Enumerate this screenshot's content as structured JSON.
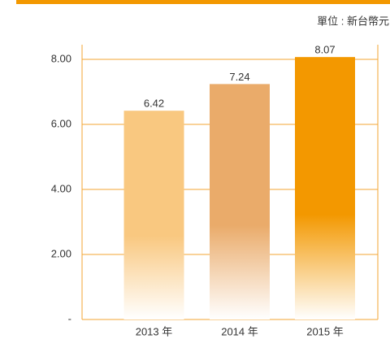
{
  "chart_data": {
    "type": "bar",
    "subtitle": "單位 : 新台幣元",
    "categories": [
      "2013 年",
      "2014 年",
      "2015 年"
    ],
    "values": [
      6.42,
      7.24,
      8.07
    ],
    "colors": [
      "#f9c880",
      "#eaab6a",
      "#f39800"
    ],
    "ylim": [
      0,
      8.45
    ],
    "yticks": [
      {
        "value": 0,
        "label": "-"
      },
      {
        "value": 2,
        "label": "2.00"
      },
      {
        "value": 4,
        "label": "4.00"
      },
      {
        "value": 6,
        "label": "6.00"
      },
      {
        "value": 8,
        "label": "8.00"
      }
    ],
    "grid": true
  }
}
